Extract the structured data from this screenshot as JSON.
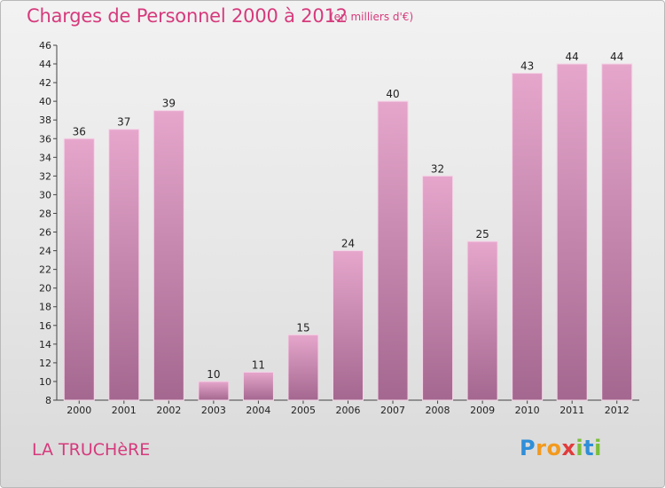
{
  "title": "Charges de Personnel 2000 à 2012",
  "subtitle": "(en milliers d'€)",
  "place": "LA TRUCHèRE",
  "logo": {
    "p": "P",
    "r": "r",
    "o1": "o",
    "x": "x",
    "i1": "i",
    "t": "t",
    "i2": "i"
  },
  "colors": {
    "bar_top": "#e6a6cc",
    "bar_bottom": "#a4678f",
    "title": "#d63a7c"
  },
  "chart_data": {
    "type": "bar",
    "title": "Charges de Personnel 2000 à 2012",
    "subtitle": "(en milliers d'€)",
    "xlabel": "",
    "ylabel": "",
    "categories": [
      "2000",
      "2001",
      "2002",
      "2003",
      "2004",
      "2005",
      "2006",
      "2007",
      "2008",
      "2009",
      "2010",
      "2011",
      "2012"
    ],
    "values": [
      36,
      37,
      39,
      10,
      11,
      15,
      24,
      40,
      32,
      25,
      43,
      44,
      44
    ],
    "ylim": [
      8,
      46
    ],
    "yticks": [
      8,
      10,
      12,
      14,
      16,
      18,
      20,
      22,
      24,
      26,
      28,
      30,
      32,
      34,
      36,
      38,
      40,
      42,
      44,
      46
    ],
    "grid": false,
    "legend": "none"
  }
}
